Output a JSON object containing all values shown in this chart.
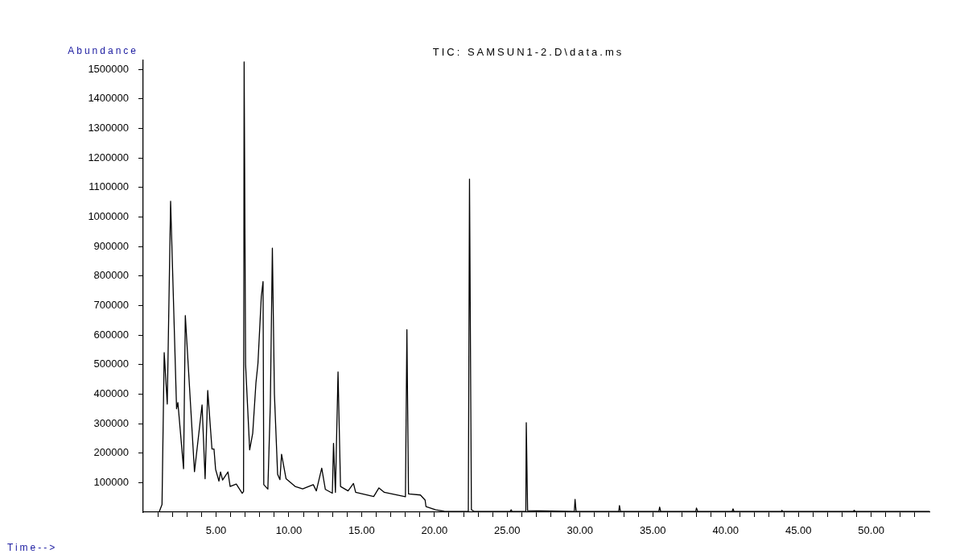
{
  "chart_data": {
    "type": "line",
    "title": "TIC: SAMSUN1-2.D\\data.ms",
    "xlabel": "Time-->",
    "ylabel": "Abundance",
    "x": [
      0.05,
      1.09,
      1.29,
      1.44,
      1.65,
      1.88,
      2.29,
      2.38,
      2.77,
      2.89,
      3.52,
      4.04,
      4.25,
      4.43,
      4.72,
      4.86,
      4.97,
      5.2,
      5.31,
      5.45,
      5.82,
      5.97,
      6.39,
      6.8,
      6.89,
      6.93,
      7.03,
      7.31,
      7.52,
      7.74,
      7.88,
      8.11,
      8.23,
      8.28,
      8.56,
      8.73,
      8.87,
      9.01,
      9.23,
      9.39,
      9.5,
      9.81,
      10.43,
      10.95,
      11.68,
      11.89,
      12.26,
      12.51,
      12.99,
      13.07,
      13.2,
      13.38,
      13.55,
      14.07,
      14.44,
      14.59,
      15.83,
      16.19,
      16.56,
      18.01,
      18.11,
      18.22,
      19.04,
      19.36,
      19.42,
      20.09,
      20.67,
      22.33,
      22.41,
      22.54,
      22.74,
      25.2,
      25.27,
      25.34,
      26.28,
      26.31,
      26.4,
      29.61,
      29.66,
      29.73,
      32.66,
      32.71,
      32.78,
      35.41,
      35.47,
      35.54,
      37.95,
      38,
      38.08,
      40.45,
      40.51,
      40.58,
      43.82,
      43.87,
      43.94,
      48.76,
      48.83,
      48.91,
      54
    ],
    "series": [
      {
        "color": "#000000",
        "values": [
          0,
          0,
          26000,
          540000,
          366000,
          1053000,
          350000,
          371000,
          147000,
          666000,
          137000,
          363000,
          113000,
          412000,
          214000,
          214000,
          145000,
          105000,
          136000,
          109000,
          136000,
          87000,
          95000,
          64000,
          70000,
          1525000,
          500000,
          211000,
          267000,
          437000,
          504000,
          730000,
          781000,
          93000,
          78000,
          366000,
          894000,
          400000,
          128000,
          110000,
          196000,
          113000,
          87000,
          79000,
          93000,
          72000,
          149000,
          77000,
          64000,
          233000,
          67000,
          475000,
          87000,
          72000,
          97000,
          67000,
          53000,
          82000,
          67000,
          52000,
          618000,
          62000,
          58000,
          41000,
          19000,
          8000,
          3000,
          2000,
          1128000,
          8000,
          2000,
          2000,
          8000,
          2000,
          2000,
          303000,
          5000,
          2000,
          43000,
          3000,
          2000,
          22000,
          2000,
          2000,
          17000,
          2000,
          2000,
          14000,
          3000,
          2000,
          11000,
          2000,
          2000,
          6000,
          2000,
          2000,
          6000,
          2000,
          2000
        ]
      }
    ],
    "xlim": [
      0,
      54
    ],
    "ylim": [
      0,
      1530000
    ],
    "xticks": [
      {
        "value": 1,
        "label": null
      },
      {
        "value": 2,
        "label": null
      },
      {
        "value": 3,
        "label": null
      },
      {
        "value": 4,
        "label": null
      },
      {
        "value": 5,
        "label": "5.00"
      },
      {
        "value": 6,
        "label": null
      },
      {
        "value": 7,
        "label": null
      },
      {
        "value": 8,
        "label": null
      },
      {
        "value": 9,
        "label": null
      },
      {
        "value": 10,
        "label": "10.00"
      },
      {
        "value": 11,
        "label": null
      },
      {
        "value": 12,
        "label": null
      },
      {
        "value": 13,
        "label": null
      },
      {
        "value": 14,
        "label": null
      },
      {
        "value": 15,
        "label": "15.00"
      },
      {
        "value": 16,
        "label": null
      },
      {
        "value": 17,
        "label": null
      },
      {
        "value": 18,
        "label": null
      },
      {
        "value": 19,
        "label": null
      },
      {
        "value": 20,
        "label": "20.00"
      },
      {
        "value": 21,
        "label": null
      },
      {
        "value": 22,
        "label": null
      },
      {
        "value": 23,
        "label": null
      },
      {
        "value": 24,
        "label": null
      },
      {
        "value": 25,
        "label": "25.00"
      },
      {
        "value": 26,
        "label": null
      },
      {
        "value": 27,
        "label": null
      },
      {
        "value": 28,
        "label": null
      },
      {
        "value": 29,
        "label": null
      },
      {
        "value": 30,
        "label": "30.00"
      },
      {
        "value": 31,
        "label": null
      },
      {
        "value": 32,
        "label": null
      },
      {
        "value": 33,
        "label": null
      },
      {
        "value": 34,
        "label": null
      },
      {
        "value": 35,
        "label": "35.00"
      },
      {
        "value": 36,
        "label": null
      },
      {
        "value": 37,
        "label": null
      },
      {
        "value": 38,
        "label": null
      },
      {
        "value": 39,
        "label": null
      },
      {
        "value": 40,
        "label": "40.00"
      },
      {
        "value": 41,
        "label": null
      },
      {
        "value": 42,
        "label": null
      },
      {
        "value": 43,
        "label": null
      },
      {
        "value": 44,
        "label": null
      },
      {
        "value": 45,
        "label": "45.00"
      },
      {
        "value": 46,
        "label": null
      },
      {
        "value": 47,
        "label": null
      },
      {
        "value": 48,
        "label": null
      },
      {
        "value": 49,
        "label": null
      },
      {
        "value": 50,
        "label": "50.00"
      },
      {
        "value": 51,
        "label": null
      },
      {
        "value": 52,
        "label": null
      },
      {
        "value": 53,
        "label": null
      }
    ],
    "yticks": [
      100000,
      200000,
      300000,
      400000,
      500000,
      600000,
      700000,
      800000,
      900000,
      1000000,
      1100000,
      1200000,
      1300000,
      1400000,
      1500000
    ],
    "grid": false,
    "legend": false,
    "marker": "none",
    "line_style": "solid"
  }
}
